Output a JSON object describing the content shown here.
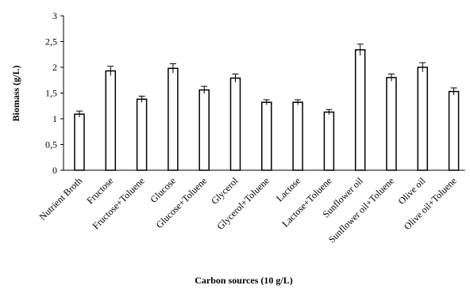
{
  "chart_data": {
    "type": "bar",
    "title": "",
    "xlabel": "Carbon  sources (10 g/L)",
    "ylabel": "Biomass (g/L)",
    "ylim": [
      0,
      3
    ],
    "yticks": [
      "0",
      "0,5",
      "1",
      "1,5",
      "2",
      "2,5",
      "3"
    ],
    "ytick_values": [
      0,
      0.5,
      1,
      1.5,
      2,
      2.5,
      3
    ],
    "categories": [
      "Nutrient Broth",
      "Fructose",
      "Fructose+Toluene",
      "Glucose",
      "Glucose+Toluene",
      "Glycerol",
      "Glycerol+Toluene",
      "Lactose",
      "Lactose+Toluene",
      "Sunflower oil",
      "Sunflower oil+Toluene",
      "Olive oil",
      "Olive oil+Toluene"
    ],
    "values": [
      1.09,
      1.93,
      1.38,
      1.98,
      1.56,
      1.79,
      1.32,
      1.32,
      1.13,
      2.34,
      1.8,
      2.0,
      1.53
    ],
    "errors": [
      0.06,
      0.09,
      0.06,
      0.09,
      0.07,
      0.08,
      0.05,
      0.05,
      0.05,
      0.11,
      0.07,
      0.09,
      0.07
    ],
    "bar_fill": "#ffffff",
    "bar_stroke": "#000000",
    "grid": false,
    "legend": "none"
  }
}
